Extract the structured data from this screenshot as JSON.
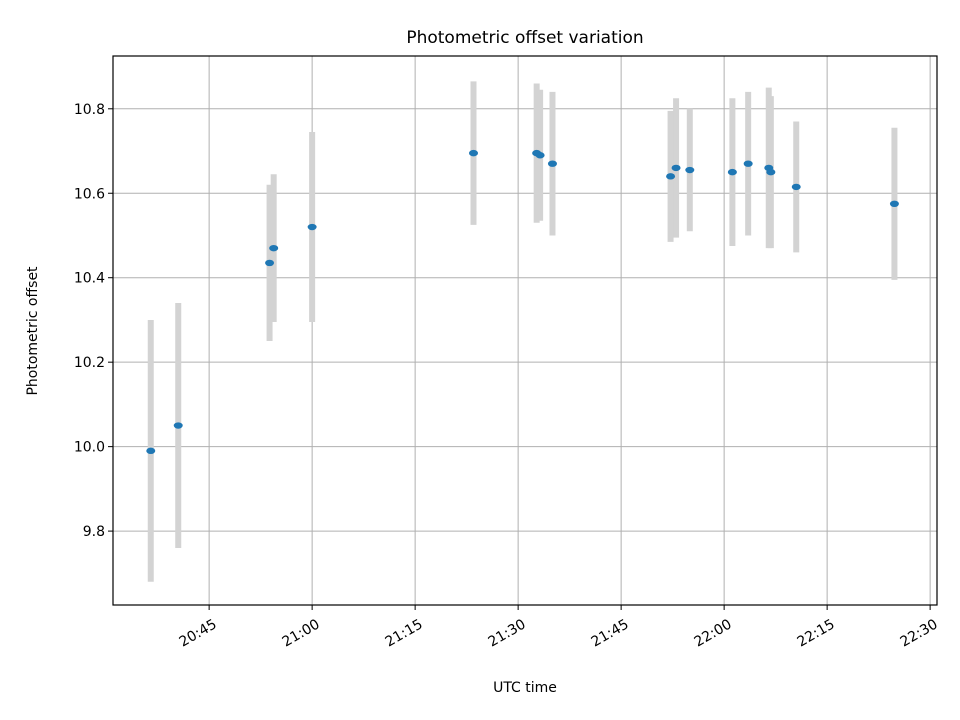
{
  "chart_data": {
    "type": "scatter",
    "title": "Photometric offset variation",
    "xlabel": "UTC time",
    "ylabel": "Photometric offset",
    "xlim": [
      "20:31",
      "22:31"
    ],
    "ylim": [
      9.625,
      10.925
    ],
    "grid": true,
    "error_bars": true,
    "x_ticks": [
      "20:45",
      "21:00",
      "21:15",
      "21:30",
      "21:45",
      "22:00",
      "22:15",
      "22:30"
    ],
    "y_ticks": [
      "9.8",
      "10.0",
      "10.2",
      "10.4",
      "10.6",
      "10.8"
    ],
    "series": [
      {
        "points": [
          {
            "x": "20:36.5",
            "y": 9.99,
            "err": 0.31
          },
          {
            "x": "20:40.5",
            "y": 10.05,
            "err": 0.29
          },
          {
            "x": "20:53.8",
            "y": 10.435,
            "err": 0.185
          },
          {
            "x": "20:54.4",
            "y": 10.47,
            "err": 0.175
          },
          {
            "x": "21:00.0",
            "y": 10.52,
            "err": 0.225
          },
          {
            "x": "21:23.5",
            "y": 10.695,
            "err": 0.17
          },
          {
            "x": "21:32.7",
            "y": 10.695,
            "err": 0.165
          },
          {
            "x": "21:33.2",
            "y": 10.69,
            "err": 0.155
          },
          {
            "x": "21:35.0",
            "y": 10.67,
            "err": 0.17
          },
          {
            "x": "21:52.2",
            "y": 10.64,
            "err": 0.155
          },
          {
            "x": "21:53.0",
            "y": 10.66,
            "err": 0.165
          },
          {
            "x": "21:55.0",
            "y": 10.655,
            "err": 0.145
          },
          {
            "x": "22:01.2",
            "y": 10.65,
            "err": 0.175
          },
          {
            "x": "22:03.5",
            "y": 10.67,
            "err": 0.17
          },
          {
            "x": "22:06.5",
            "y": 10.66,
            "err": 0.19
          },
          {
            "x": "22:06.8",
            "y": 10.65,
            "err": 0.18
          },
          {
            "x": "22:10.5",
            "y": 10.615,
            "err": 0.155
          },
          {
            "x": "22:24.8",
            "y": 10.575,
            "err": 0.18
          }
        ],
        "color": "#1f77b4",
        "errorbar_color": "#d3d3d3"
      }
    ]
  }
}
